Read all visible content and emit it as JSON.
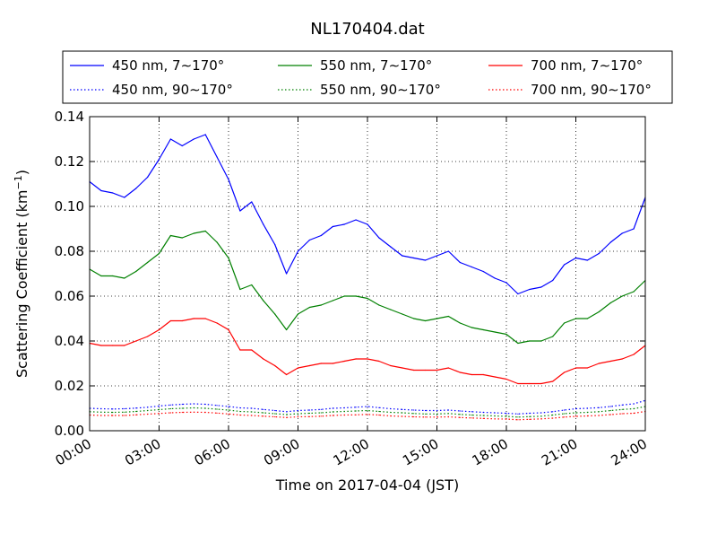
{
  "chart_data": {
    "type": "line",
    "title": "NL170404.dat",
    "xlabel": "Time on 2017-04-04 (JST)",
    "ylabel_main": "Scattering Coefficient (km",
    "ylabel_sup": "−1",
    "ylabel_close": ")",
    "xlim": [
      0,
      24
    ],
    "ylim": [
      0,
      0.14
    ],
    "grid": true,
    "legend_placement": "top (above plot), 3 columns",
    "x_ticks": [
      {
        "value": 0,
        "label": "00:00"
      },
      {
        "value": 3,
        "label": "03:00"
      },
      {
        "value": 6,
        "label": "06:00"
      },
      {
        "value": 9,
        "label": "09:00"
      },
      {
        "value": 12,
        "label": "12:00"
      },
      {
        "value": 15,
        "label": "15:00"
      },
      {
        "value": 18,
        "label": "18:00"
      },
      {
        "value": 21,
        "label": "21:00"
      },
      {
        "value": 24,
        "label": "24:00"
      }
    ],
    "y_ticks": [
      {
        "value": 0.0,
        "label": "0.00"
      },
      {
        "value": 0.02,
        "label": "0.02"
      },
      {
        "value": 0.04,
        "label": "0.04"
      },
      {
        "value": 0.06,
        "label": "0.06"
      },
      {
        "value": 0.08,
        "label": "0.08"
      },
      {
        "value": 0.1,
        "label": "0.10"
      },
      {
        "value": 0.12,
        "label": "0.12"
      },
      {
        "value": 0.14,
        "label": "0.14"
      }
    ],
    "x": [
      0,
      0.5,
      1,
      1.5,
      2,
      2.5,
      3,
      3.5,
      4,
      4.5,
      5,
      5.5,
      6,
      6.5,
      7,
      7.5,
      8,
      8.5,
      9,
      9.5,
      10,
      10.5,
      11,
      11.5,
      12,
      12.5,
      13,
      13.5,
      14,
      14.5,
      15,
      15.5,
      16,
      16.5,
      17,
      17.5,
      18,
      18.5,
      19,
      19.5,
      20,
      20.5,
      21,
      21.5,
      22,
      22.5,
      23,
      23.5,
      24
    ],
    "series": [
      {
        "name": "450 nm, 7∼170°",
        "color": "#0000ff",
        "style": "solid",
        "values": [
          0.111,
          0.107,
          0.106,
          0.104,
          0.108,
          0.113,
          0.121,
          0.13,
          0.127,
          0.13,
          0.132,
          0.122,
          0.112,
          0.098,
          0.102,
          0.092,
          0.083,
          0.07,
          0.08,
          0.085,
          0.087,
          0.091,
          0.092,
          0.094,
          0.092,
          0.086,
          0.082,
          0.078,
          0.077,
          0.076,
          0.078,
          0.08,
          0.075,
          0.073,
          0.071,
          0.068,
          0.066,
          0.061,
          0.063,
          0.064,
          0.067,
          0.074,
          0.077,
          0.076,
          0.079,
          0.084,
          0.088,
          0.09,
          0.104
        ]
      },
      {
        "name": "450 nm, 90∼170°",
        "color": "#0000ff",
        "style": "dotted",
        "values": [
          0.01,
          0.0098,
          0.0097,
          0.0098,
          0.0101,
          0.0105,
          0.011,
          0.0115,
          0.0118,
          0.012,
          0.0118,
          0.0113,
          0.0108,
          0.0102,
          0.01,
          0.0095,
          0.009,
          0.0085,
          0.009,
          0.0092,
          0.0095,
          0.01,
          0.0102,
          0.0105,
          0.0108,
          0.0103,
          0.0098,
          0.0095,
          0.0092,
          0.009,
          0.009,
          0.0092,
          0.0088,
          0.0085,
          0.0082,
          0.008,
          0.0078,
          0.0075,
          0.0078,
          0.008,
          0.0085,
          0.0092,
          0.0098,
          0.01,
          0.0103,
          0.0108,
          0.0115,
          0.012,
          0.0135
        ]
      },
      {
        "name": "550 nm, 7∼170°",
        "color": "#008000",
        "style": "solid",
        "values": [
          0.072,
          0.069,
          0.069,
          0.068,
          0.071,
          0.075,
          0.079,
          0.087,
          0.086,
          0.088,
          0.089,
          0.084,
          0.077,
          0.063,
          0.065,
          0.058,
          0.052,
          0.045,
          0.052,
          0.055,
          0.056,
          0.058,
          0.06,
          0.06,
          0.059,
          0.056,
          0.054,
          0.052,
          0.05,
          0.049,
          0.05,
          0.051,
          0.048,
          0.046,
          0.045,
          0.044,
          0.043,
          0.039,
          0.04,
          0.04,
          0.042,
          0.048,
          0.05,
          0.05,
          0.053,
          0.057,
          0.06,
          0.062,
          0.067
        ]
      },
      {
        "name": "550 nm, 90∼170°",
        "color": "#008000",
        "style": "dotted",
        "values": [
          0.0085,
          0.0083,
          0.0082,
          0.0083,
          0.0086,
          0.009,
          0.0094,
          0.0098,
          0.01,
          0.0102,
          0.01,
          0.0096,
          0.0092,
          0.0086,
          0.0084,
          0.008,
          0.0076,
          0.0072,
          0.0076,
          0.0078,
          0.008,
          0.0084,
          0.0086,
          0.0088,
          0.009,
          0.0086,
          0.0082,
          0.008,
          0.0077,
          0.0075,
          0.0075,
          0.0077,
          0.0073,
          0.007,
          0.0068,
          0.0066,
          0.0064,
          0.0061,
          0.0063,
          0.0065,
          0.007,
          0.0076,
          0.008,
          0.0082,
          0.0085,
          0.009,
          0.0095,
          0.0098,
          0.0108
        ]
      },
      {
        "name": "700 nm, 7∼170°",
        "color": "#ff0000",
        "style": "solid",
        "values": [
          0.039,
          0.038,
          0.038,
          0.038,
          0.04,
          0.042,
          0.045,
          0.049,
          0.049,
          0.05,
          0.05,
          0.048,
          0.045,
          0.036,
          0.036,
          0.032,
          0.029,
          0.025,
          0.028,
          0.029,
          0.03,
          0.03,
          0.031,
          0.032,
          0.032,
          0.031,
          0.029,
          0.028,
          0.027,
          0.027,
          0.027,
          0.028,
          0.026,
          0.025,
          0.025,
          0.024,
          0.023,
          0.021,
          0.021,
          0.021,
          0.022,
          0.026,
          0.028,
          0.028,
          0.03,
          0.031,
          0.032,
          0.034,
          0.038
        ]
      },
      {
        "name": "700 nm, 90∼170°",
        "color": "#ff0000",
        "style": "dotted",
        "values": [
          0.007,
          0.0068,
          0.0068,
          0.0068,
          0.0071,
          0.0074,
          0.0077,
          0.008,
          0.0082,
          0.0083,
          0.0082,
          0.0079,
          0.0075,
          0.007,
          0.0068,
          0.0065,
          0.0062,
          0.0059,
          0.0062,
          0.0063,
          0.0065,
          0.0068,
          0.007,
          0.0071,
          0.0073,
          0.007,
          0.0066,
          0.0064,
          0.0062,
          0.0061,
          0.0061,
          0.0062,
          0.0059,
          0.0057,
          0.0055,
          0.0053,
          0.0052,
          0.0049,
          0.0051,
          0.0053,
          0.0056,
          0.0061,
          0.0064,
          0.0066,
          0.0068,
          0.0072,
          0.0076,
          0.0078,
          0.0086
        ]
      }
    ]
  }
}
